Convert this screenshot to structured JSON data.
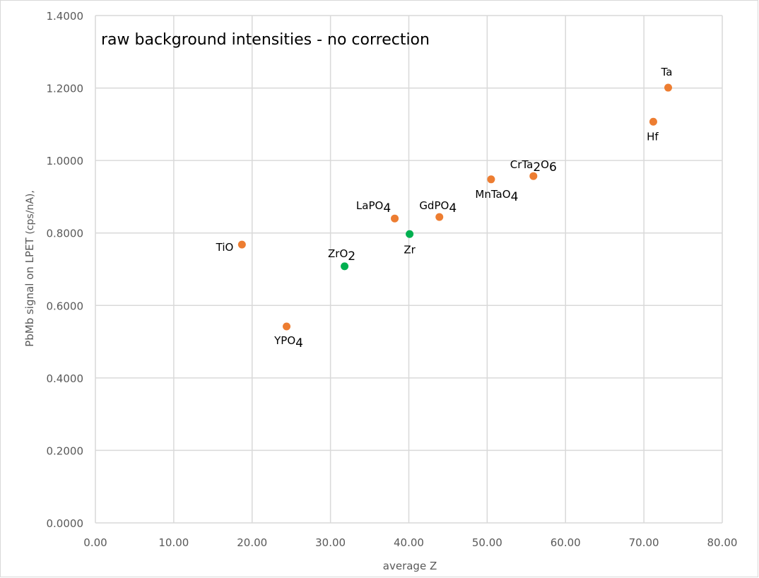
{
  "chart_data": {
    "type": "scatter",
    "title": "raw background intensities - no correction",
    "xlabel": "average Z",
    "ylabel_main": "PbMb signal on LPET ",
    "ylabel_unit": "(cps/nA),",
    "xlim": [
      0,
      80
    ],
    "ylim": [
      0,
      1.4
    ],
    "x_ticks": [
      0,
      10,
      20,
      30,
      40,
      50,
      60,
      70,
      80
    ],
    "x_tick_labels": [
      "0.00",
      "10.00",
      "20.00",
      "30.00",
      "40.00",
      "50.00",
      "60.00",
      "70.00",
      "80.00"
    ],
    "y_ticks": [
      0,
      0.2,
      0.4,
      0.6,
      0.8,
      1.0,
      1.2,
      1.4
    ],
    "y_tick_labels": [
      "0.0000",
      "0.2000",
      "0.4000",
      "0.6000",
      "0.8000",
      "1.0000",
      "1.2000",
      "1.4000"
    ],
    "grid": true,
    "colors": {
      "orange": "#ED7D31",
      "green": "#00B050",
      "grid": "#D9D9D9"
    },
    "points": [
      {
        "label": "TiO",
        "label_parts": [
          "TiO"
        ],
        "x": 18.7,
        "y": 0.768,
        "color": "orange"
      },
      {
        "label": "YPO4",
        "label_parts": [
          "YPO",
          "4"
        ],
        "x": 24.4,
        "y": 0.542,
        "color": "orange"
      },
      {
        "label": "ZrO2",
        "label_parts": [
          "ZrO",
          "2"
        ],
        "x": 31.8,
        "y": 0.708,
        "color": "green"
      },
      {
        "label": "LaPO4",
        "label_parts": [
          "LaPO",
          "4"
        ],
        "x": 38.2,
        "y": 0.84,
        "color": "orange"
      },
      {
        "label": "Zr",
        "label_parts": [
          "Zr"
        ],
        "x": 40.1,
        "y": 0.797,
        "color": "green"
      },
      {
        "label": "GdPO4",
        "label_parts": [
          "GdPO",
          "4"
        ],
        "x": 43.9,
        "y": 0.844,
        "color": "orange"
      },
      {
        "label": "MnTaO4",
        "label_parts": [
          "MnTaO",
          "4"
        ],
        "x": 50.5,
        "y": 0.948,
        "color": "orange"
      },
      {
        "label": "CrTa2O6",
        "label_parts": [
          "CrTa",
          "2",
          "O",
          "6"
        ],
        "x": 55.9,
        "y": 0.957,
        "color": "orange"
      },
      {
        "label": "Hf",
        "label_parts": [
          "Hf"
        ],
        "x": 71.2,
        "y": 1.107,
        "color": "orange"
      },
      {
        "label": "Ta",
        "label_parts": [
          "Ta"
        ],
        "x": 73.1,
        "y": 1.201,
        "color": "orange"
      }
    ]
  }
}
